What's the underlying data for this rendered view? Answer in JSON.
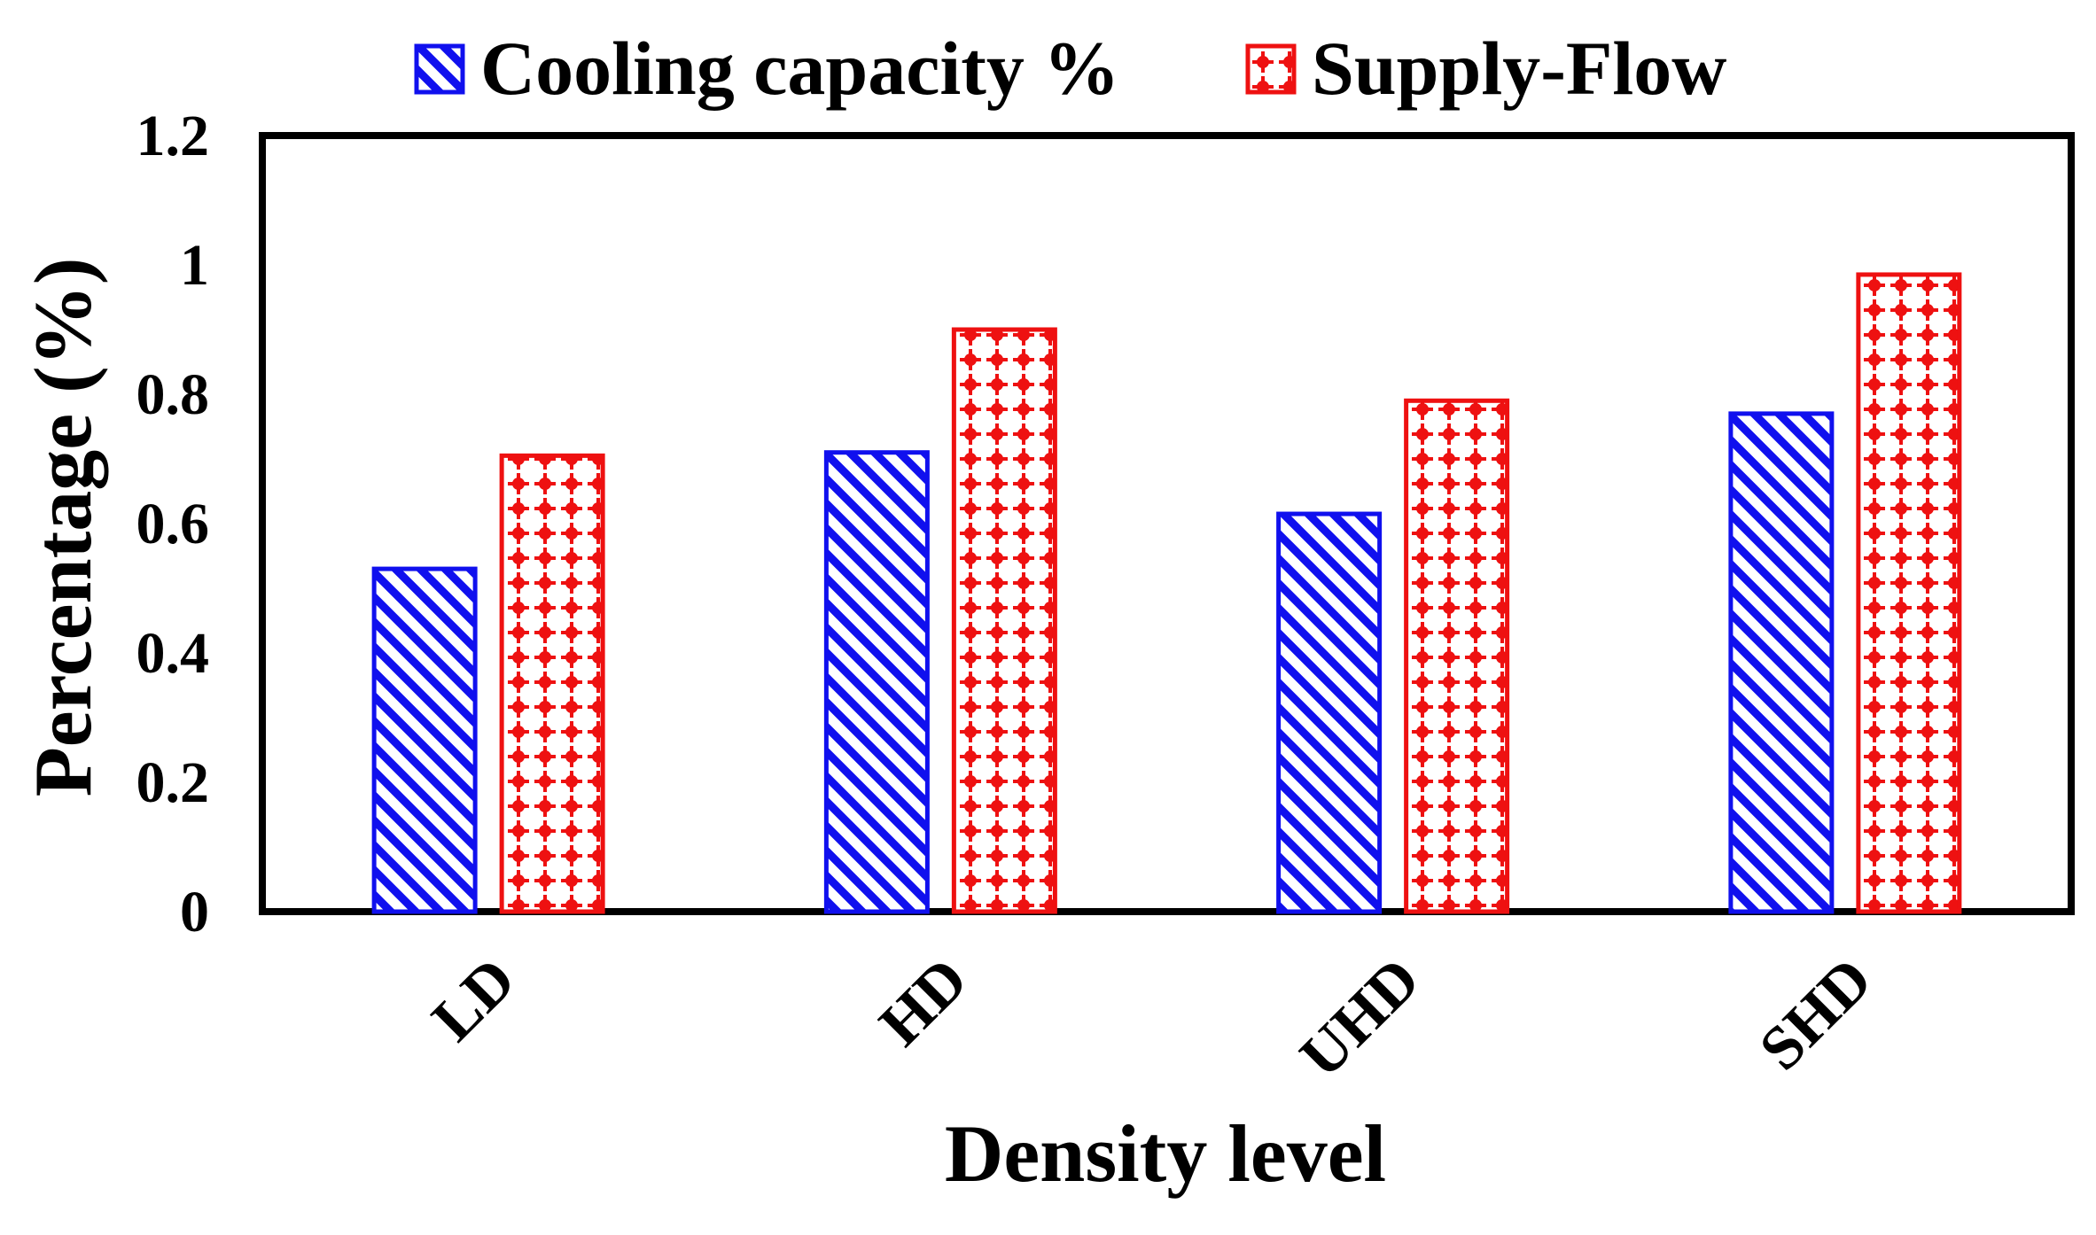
{
  "chart_data": {
    "type": "bar",
    "title": "",
    "xlabel": "Density level",
    "ylabel": "Percentage (%)",
    "categories": [
      "LD",
      "HD",
      "UHD",
      "SHD"
    ],
    "ylim": [
      0,
      1.2
    ],
    "yticks": [
      0,
      0.2,
      0.4,
      0.6,
      0.8,
      1,
      1.2
    ],
    "ytick_labels": [
      "0",
      "0.2",
      "0.4",
      "0.6",
      "0.8",
      "1",
      "1.2"
    ],
    "grid": false,
    "legend_position": "top",
    "series": [
      {
        "name": "Cooling capacity %",
        "values": [
          0.53,
          0.71,
          0.615,
          0.77
        ],
        "color": "#1010ee",
        "pattern": "diagonal-hatch"
      },
      {
        "name": "Supply-Flow",
        "values": [
          0.705,
          0.9,
          0.79,
          0.985
        ],
        "color": "#ee1111",
        "pattern": "dotted-grid"
      }
    ]
  }
}
